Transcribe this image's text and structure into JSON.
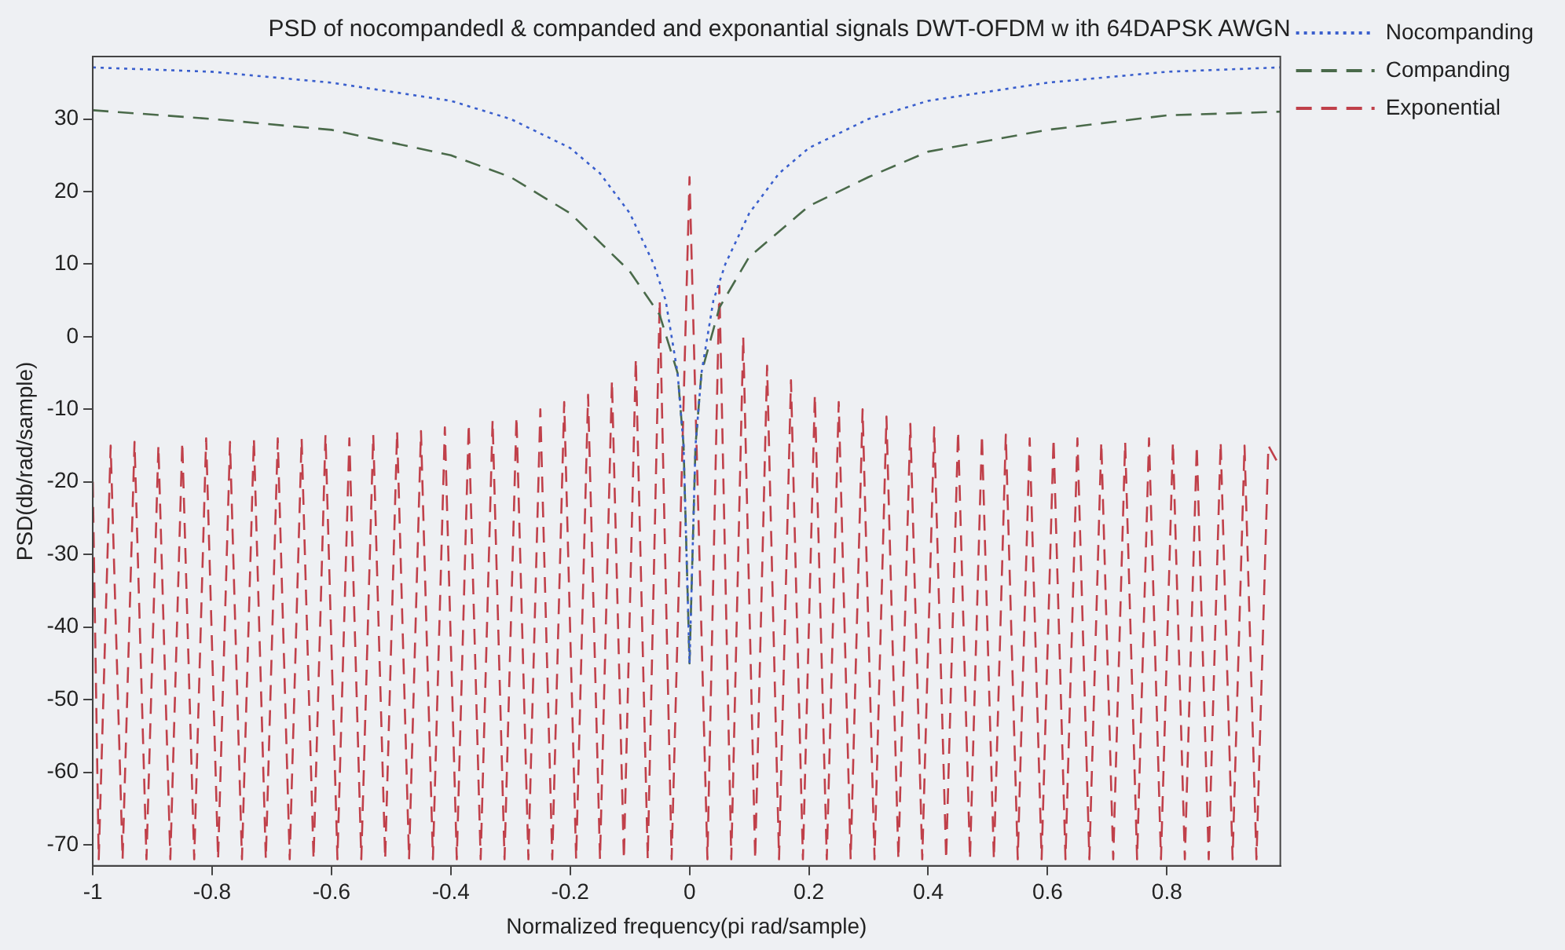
{
  "chart_data": {
    "type": "line",
    "title": "PSD of nocompandedl & companded and exponantial signals DWT-OFDM w ith 64DAPSK AWGN",
    "xlabel": "Normalized frequency(pi rad/sample)",
    "ylabel": "PSD(db/rad/sample)",
    "xlim": [
      -1,
      0.99
    ],
    "xticks": [
      -1,
      -0.8,
      -0.6,
      -0.4,
      -0.2,
      0,
      0.2,
      0.4,
      0.6,
      0.8
    ],
    "ylim": [
      -72.9,
      38.6
    ],
    "yticks": [
      -70,
      -60,
      -50,
      -40,
      -30,
      -20,
      -10,
      0,
      10,
      20,
      30
    ],
    "grid": false,
    "legend": "top right",
    "marker": "none",
    "series": [
      {
        "name": "Nocompanding",
        "color": "#3a5fcd",
        "line_style": "dotted",
        "x": [
          -1,
          -0.8,
          -0.6,
          -0.4,
          -0.3,
          -0.2,
          -0.15,
          -0.1,
          -0.06,
          -0.04,
          -0.02,
          -0.01,
          0,
          0.01,
          0.02,
          0.04,
          0.06,
          0.1,
          0.15,
          0.2,
          0.3,
          0.4,
          0.6,
          0.8,
          0.99
        ],
        "values": [
          37.1,
          36.5,
          35,
          32.5,
          30,
          26,
          22.5,
          17,
          10,
          5,
          -5,
          -15,
          -45,
          -15,
          -5,
          5,
          10,
          17,
          22.5,
          26,
          30,
          32.5,
          35,
          36.5,
          37.1
        ]
      },
      {
        "name": "Companding",
        "color": "#4a6a4a",
        "line_style": "dashed",
        "x": [
          -1,
          -0.8,
          -0.6,
          -0.4,
          -0.3,
          -0.2,
          -0.1,
          -0.05,
          -0.02,
          -0.01,
          0,
          0.01,
          0.02,
          0.05,
          0.1,
          0.2,
          0.3,
          0.4,
          0.6,
          0.8,
          0.99
        ],
        "values": [
          31.2,
          30,
          28.5,
          25,
          22,
          17,
          9,
          3,
          -5,
          -15,
          -45,
          -15,
          -5,
          4,
          11,
          18,
          22,
          25.5,
          28.5,
          30.5,
          31
        ]
      },
      {
        "name": "Exponential",
        "color": "#c0404a",
        "line_style": "dashed",
        "x": [
          -1,
          -0.99,
          -0.97,
          -0.95,
          -0.93,
          -0.91,
          -0.89,
          -0.87,
          -0.85,
          -0.83,
          -0.81,
          -0.79,
          -0.77,
          -0.75,
          -0.73,
          -0.71,
          -0.69,
          -0.67,
          -0.65,
          -0.63,
          -0.61,
          -0.59,
          -0.57,
          -0.55,
          -0.53,
          -0.51,
          -0.49,
          -0.47,
          -0.45,
          -0.43,
          -0.41,
          -0.39,
          -0.37,
          -0.35,
          -0.33,
          -0.31,
          -0.29,
          -0.27,
          -0.25,
          -0.23,
          -0.21,
          -0.19,
          -0.17,
          -0.15,
          -0.13,
          -0.11,
          -0.09,
          -0.07,
          -0.05,
          -0.03,
          0,
          0.03,
          0.05,
          0.07,
          0.09,
          0.11,
          0.13,
          0.15,
          0.17,
          0.19,
          0.21,
          0.23,
          0.25,
          0.27,
          0.29,
          0.31,
          0.33,
          0.35,
          0.37,
          0.39,
          0.41,
          0.43,
          0.45,
          0.47,
          0.49,
          0.51,
          0.53,
          0.55,
          0.57,
          0.59,
          0.61,
          0.63,
          0.65,
          0.67,
          0.69,
          0.71,
          0.73,
          0.75,
          0.77,
          0.79,
          0.81,
          0.83,
          0.85,
          0.87,
          0.89,
          0.91,
          0.93,
          0.95,
          0.97,
          0.99
        ],
        "values": [
          -20,
          -72,
          -15,
          -72,
          -14.5,
          -72,
          -15,
          -72,
          -14.5,
          -72,
          -14,
          -72,
          -14.5,
          -72,
          -14,
          -72,
          -14,
          -72,
          -14,
          -72,
          -13.5,
          -72,
          -14,
          -72,
          -13.5,
          -72,
          -13,
          -72,
          -13,
          -72,
          -12.5,
          -72,
          -12,
          -72,
          -11.5,
          -72,
          -11,
          -72,
          -10,
          -72,
          -9,
          -72,
          -8,
          -72,
          -6,
          -72,
          -3,
          -72,
          5,
          -72,
          22,
          -72,
          7,
          -72,
          0,
          -72,
          -4,
          -72,
          -6,
          -72,
          -8,
          -72,
          -9,
          -72,
          -10,
          -72,
          -11,
          -72,
          -12,
          -72,
          -12.5,
          -72,
          -13,
          -72,
          -13.5,
          -72,
          -13.5,
          -72,
          -14,
          -72,
          -14,
          -72,
          -14,
          -72,
          -14.5,
          -72,
          -14.5,
          -72,
          -14,
          -72,
          -14.5,
          -72,
          -15,
          -72,
          -14.5,
          -72,
          -15,
          -72,
          -15,
          -18
        ]
      }
    ]
  }
}
